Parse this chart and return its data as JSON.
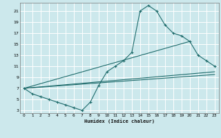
{
  "xlabel": "Humidex (Indice chaleur)",
  "background_color": "#cce8ec",
  "grid_color": "#ffffff",
  "line_color": "#1e6b6b",
  "xlim": [
    -0.5,
    23.5
  ],
  "ylim": [
    2.5,
    22.5
  ],
  "xticks": [
    0,
    1,
    2,
    3,
    4,
    5,
    6,
    7,
    8,
    9,
    10,
    11,
    12,
    13,
    14,
    15,
    16,
    17,
    18,
    19,
    20,
    21,
    22,
    23
  ],
  "yticks": [
    3,
    5,
    7,
    9,
    11,
    13,
    15,
    17,
    19,
    21
  ],
  "series1_x": [
    0,
    1,
    2,
    3,
    4,
    5,
    6,
    7,
    8,
    9,
    10,
    11,
    12,
    13,
    14,
    15,
    16,
    17,
    18,
    19,
    20,
    21,
    22,
    23
  ],
  "series1_y": [
    7,
    6,
    5.5,
    5,
    4.5,
    4,
    3.5,
    3,
    4.5,
    7.5,
    10,
    11,
    12,
    13.5,
    21,
    22,
    21,
    18.5,
    17,
    16.5,
    15.5,
    13,
    12,
    11
  ],
  "series2_x": [
    0,
    23
  ],
  "series2_y": [
    7,
    10
  ],
  "series3_x": [
    0,
    20
  ],
  "series3_y": [
    7,
    15.5
  ],
  "series4_x": [
    0,
    23
  ],
  "series4_y": [
    7,
    9.5
  ]
}
